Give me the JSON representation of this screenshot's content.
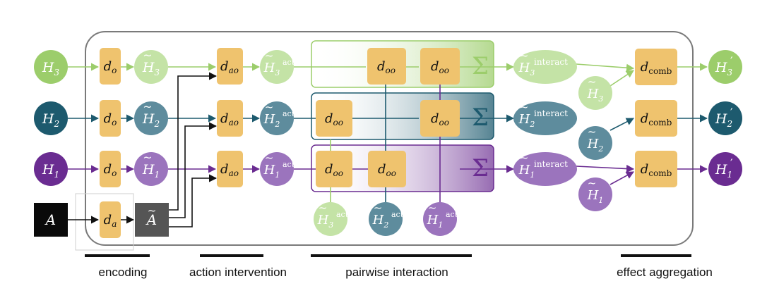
{
  "colors": {
    "green": "#9ccd6b",
    "green_light": "#c4e3a6",
    "teal": "#1d5a6e",
    "teal_mid": "#5e8c9d",
    "purple": "#6a2c91",
    "purple_mid": "#9b74bd",
    "block": "#efc36e",
    "black": "#0a0a0a",
    "grey": "#555555",
    "frame": "#7a7a7a"
  },
  "inputs": {
    "h3": {
      "base": "H",
      "sub": "3"
    },
    "h2": {
      "base": "H",
      "sub": "2"
    },
    "h1": {
      "base": "H",
      "sub": "1"
    },
    "a": "A"
  },
  "encoding": {
    "do": {
      "base": "d",
      "sub": "o"
    },
    "da": {
      "base": "d",
      "sub": "a"
    },
    "tilde_h3": {
      "base": "H",
      "sub": "3"
    },
    "tilde_h2": {
      "base": "H",
      "sub": "2"
    },
    "tilde_h1": {
      "base": "H",
      "sub": "1"
    },
    "tilde_a": "A"
  },
  "action": {
    "dao": {
      "base": "d",
      "sub": "ao"
    },
    "act_sup": "act",
    "h3": {
      "base": "H",
      "sub": "3"
    },
    "h2": {
      "base": "H",
      "sub": "2"
    },
    "h1": {
      "base": "H",
      "sub": "1"
    }
  },
  "pairwise": {
    "doo": {
      "base": "d",
      "sub": "oo"
    },
    "sum": "Σ",
    "bottom_h3": {
      "base": "H",
      "sub": "3"
    },
    "bottom_h2": {
      "base": "H",
      "sub": "2"
    },
    "bottom_h1": {
      "base": "H",
      "sub": "1"
    }
  },
  "aggregation": {
    "interact_sup": "interact",
    "dcomb": {
      "base": "d",
      "sub": "comb"
    },
    "h3": {
      "base": "H",
      "sub": "3"
    },
    "h2": {
      "base": "H",
      "sub": "2"
    },
    "h1": {
      "base": "H",
      "sub": "1"
    },
    "out_h3": {
      "base": "H",
      "sub": "3"
    },
    "out_h2": {
      "base": "H",
      "sub": "2"
    },
    "out_h1": {
      "base": "H",
      "sub": "1"
    },
    "prime": "′"
  },
  "stage_labels": {
    "encoding": "encoding",
    "action_intervention": "action intervention",
    "pairwise_interaction": "pairwise interaction",
    "effect_aggregation": "effect aggregation"
  }
}
